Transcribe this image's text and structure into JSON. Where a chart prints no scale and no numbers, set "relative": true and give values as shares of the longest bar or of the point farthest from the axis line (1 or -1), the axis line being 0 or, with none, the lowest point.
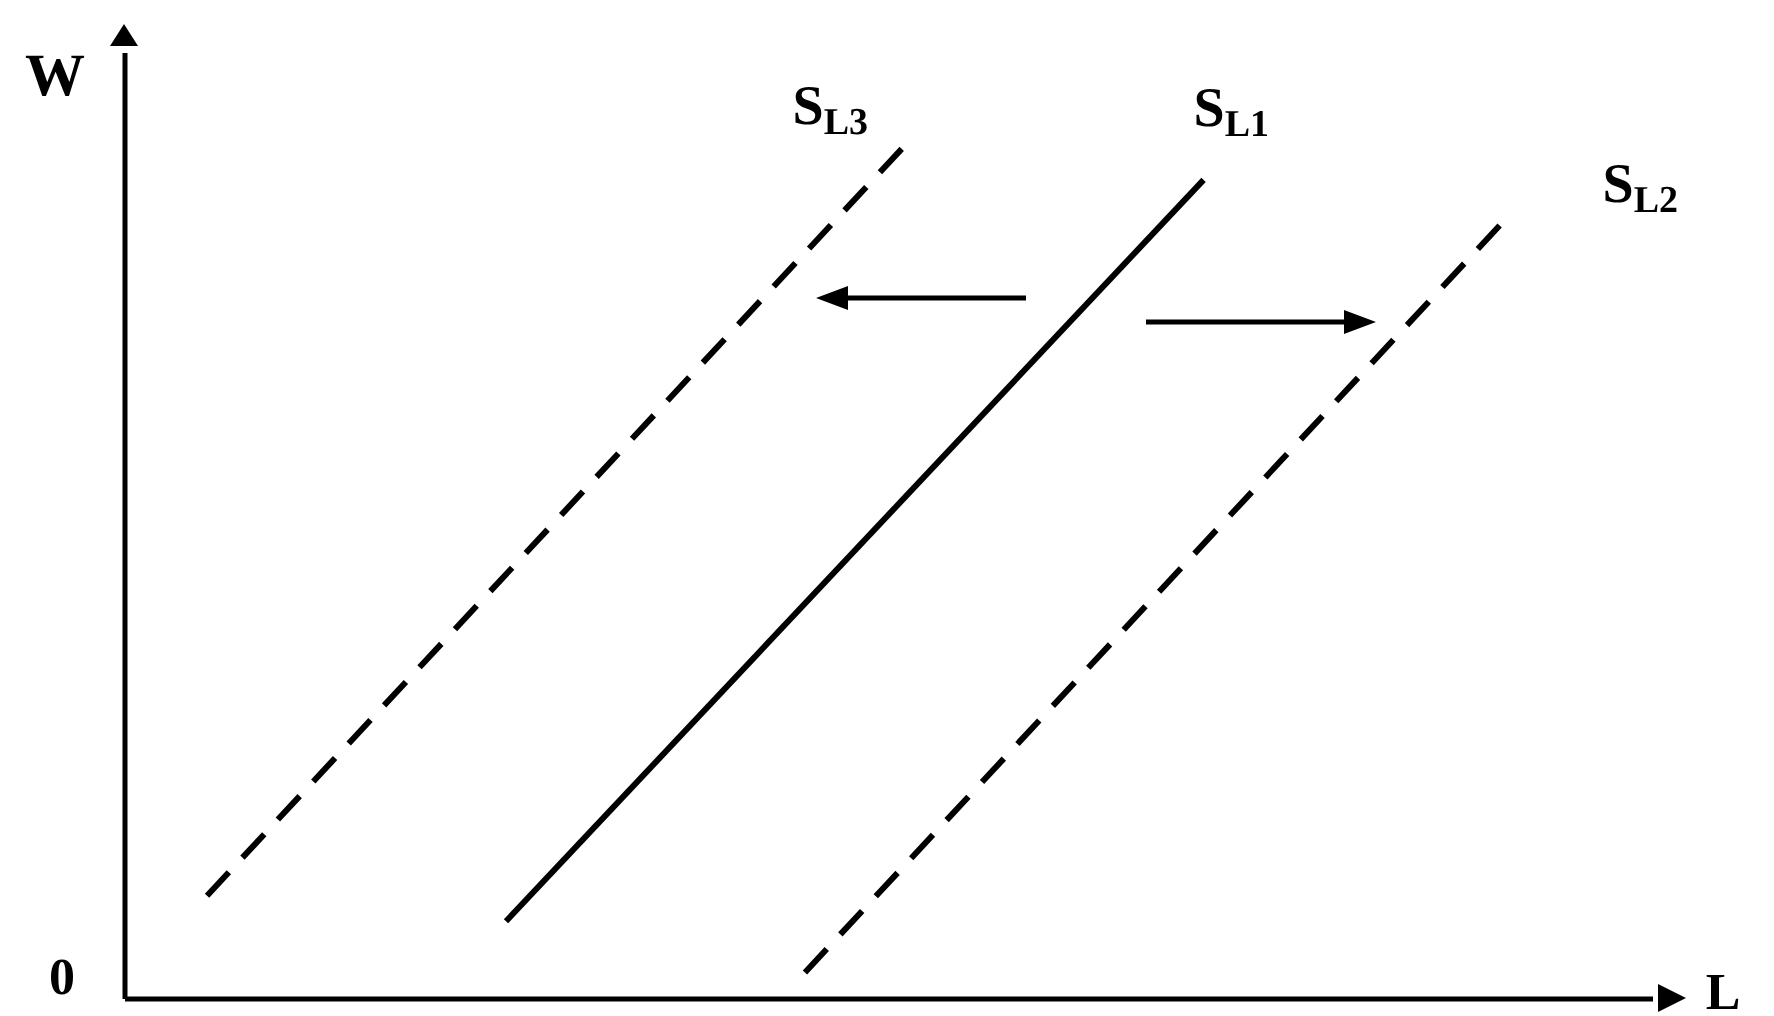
{
  "chart_data": {
    "type": "line",
    "relative": true,
    "xlabel": "L",
    "ylabel": "W",
    "categories": [
      null,
      null,
      null,
      null,
      null,
      null,
      null,
      null,
      null,
      null,
      null,
      null,
      null,
      null,
      null,
      null,
      null,
      null,
      null,
      null,
      null,
      null,
      null,
      null,
      null,
      null,
      null,
      null,
      null,
      null,
      null,
      null,
      null,
      null,
      null,
      null,
      null,
      null,
      null,
      null,
      null,
      null,
      null,
      null,
      null,
      null
    ],
    "series": [
      {
        "name": "S$_{L3}$",
        "color": "#000000",
        "line_style": "dashed",
        "values": [
          null,
          null,
          0.12,
          null,
          null,
          null,
          null,
          null,
          null,
          null,
          null,
          null,
          null,
          null,
          null,
          null,
          null,
          null,
          null,
          null,
          null,
          null,
          null,
          1.0,
          null,
          null,
          null,
          null,
          null,
          null,
          null,
          null,
          null,
          null,
          null,
          null,
          null,
          null,
          null,
          null,
          null,
          null,
          null,
          null,
          null,
          null
        ]
      },
      {
        "name": "S$_{L1}$",
        "color": "#000000",
        "line_style": "solid",
        "values": [
          null,
          null,
          null,
          null,
          null,
          null,
          null,
          null,
          null,
          null,
          null,
          0.09,
          null,
          null,
          null,
          null,
          null,
          null,
          null,
          null,
          null,
          null,
          null,
          null,
          null,
          null,
          null,
          null,
          null,
          null,
          null,
          null,
          0.96,
          null,
          null,
          null,
          null,
          null,
          null,
          null,
          null,
          null,
          null,
          null,
          null,
          null
        ]
      },
      {
        "name": "S$_{L2}$",
        "color": "#000000",
        "line_style": "dashed",
        "values": [
          null,
          null,
          null,
          null,
          null,
          null,
          null,
          null,
          null,
          null,
          null,
          null,
          null,
          null,
          null,
          null,
          null,
          null,
          null,
          null,
          0.03,
          null,
          null,
          null,
          null,
          null,
          null,
          null,
          null,
          null,
          null,
          null,
          null,
          null,
          null,
          null,
          null,
          null,
          null,
          null,
          null,
          0.91,
          null,
          null,
          null,
          null
        ]
      }
    ],
    "annotations": [
      "0"
    ]
  }
}
